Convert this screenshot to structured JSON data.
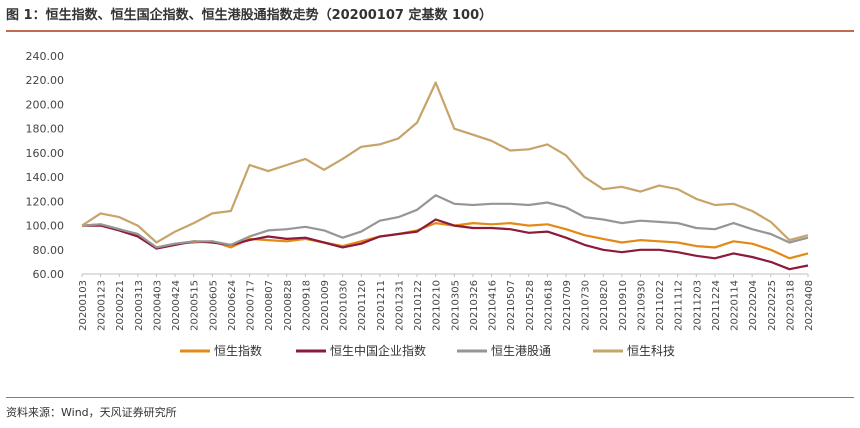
{
  "title": "图 1：恒生指数、恒生国企指数、恒生港股通指数走势（20200107 定基数 100）",
  "source": "资料来源：Wind，天风证券研究所",
  "colors": {
    "hsi": "#e38a16",
    "hscei": "#8c1a3a",
    "hsggt": "#969696",
    "hstech": "#c6a46a",
    "rule": "#c36a4e"
  },
  "chart_data": {
    "type": "line",
    "title": "恒生指数、恒生国企指数、恒生港股通指数走势（20200107 定基数 100）",
    "xlabel": "",
    "ylabel": "",
    "ylim": [
      60,
      240
    ],
    "yticks": [
      "60.00",
      "80.00",
      "100.00",
      "120.00",
      "140.00",
      "160.00",
      "180.00",
      "200.00",
      "220.00",
      "240.00"
    ],
    "x": [
      "20200103",
      "20200123",
      "20200221",
      "20200313",
      "20200403",
      "20200424",
      "20200515",
      "20200605",
      "20200624",
      "20200717",
      "20200807",
      "20200828",
      "20200918",
      "20201009",
      "20201030",
      "20201120",
      "20201211",
      "20201231",
      "20210122",
      "20210210",
      "20210305",
      "20210326",
      "20210416",
      "20210507",
      "20210528",
      "20210618",
      "20210709",
      "20210730",
      "20210820",
      "20210910",
      "20210930",
      "20211022",
      "20211112",
      "20211203",
      "20211224",
      "20220114",
      "20220204",
      "20220225",
      "20220318",
      "20220408"
    ],
    "series": [
      {
        "name": "恒生指数",
        "color_key": "hsi",
        "values": [
          100,
          101,
          97,
          92,
          82,
          85,
          86,
          87,
          82,
          89,
          88,
          87,
          89,
          86,
          83,
          87,
          91,
          93,
          96,
          102,
          100,
          102,
          101,
          102,
          100,
          101,
          97,
          92,
          89,
          86,
          88,
          87,
          86,
          83,
          82,
          87,
          85,
          80,
          73,
          77
        ]
      },
      {
        "name": "恒生中国企业指数",
        "color_key": "hscei",
        "values": [
          100,
          100,
          96,
          91,
          81,
          84,
          87,
          86,
          84,
          88,
          91,
          89,
          90,
          86,
          82,
          85,
          91,
          93,
          95,
          105,
          100,
          98,
          98,
          97,
          94,
          95,
          90,
          84,
          80,
          78,
          80,
          80,
          78,
          75,
          73,
          77,
          74,
          70,
          64,
          67
        ]
      },
      {
        "name": "恒生港股通",
        "color_key": "hsggt",
        "values": [
          100,
          101,
          97,
          93,
          82,
          85,
          87,
          87,
          84,
          91,
          96,
          97,
          99,
          96,
          90,
          95,
          104,
          107,
          113,
          125,
          118,
          117,
          118,
          118,
          117,
          119,
          115,
          107,
          105,
          102,
          104,
          103,
          102,
          98,
          97,
          102,
          97,
          93,
          86,
          90
        ]
      },
      {
        "name": "恒生科技",
        "color_key": "hstech",
        "values": [
          100,
          110,
          107,
          100,
          86,
          95,
          102,
          110,
          112,
          150,
          145,
          150,
          155,
          146,
          155,
          165,
          167,
          172,
          185,
          218,
          180,
          175,
          170,
          162,
          163,
          167,
          158,
          140,
          130,
          132,
          128,
          133,
          130,
          122,
          117,
          118,
          112,
          103,
          88,
          92
        ]
      }
    ]
  }
}
